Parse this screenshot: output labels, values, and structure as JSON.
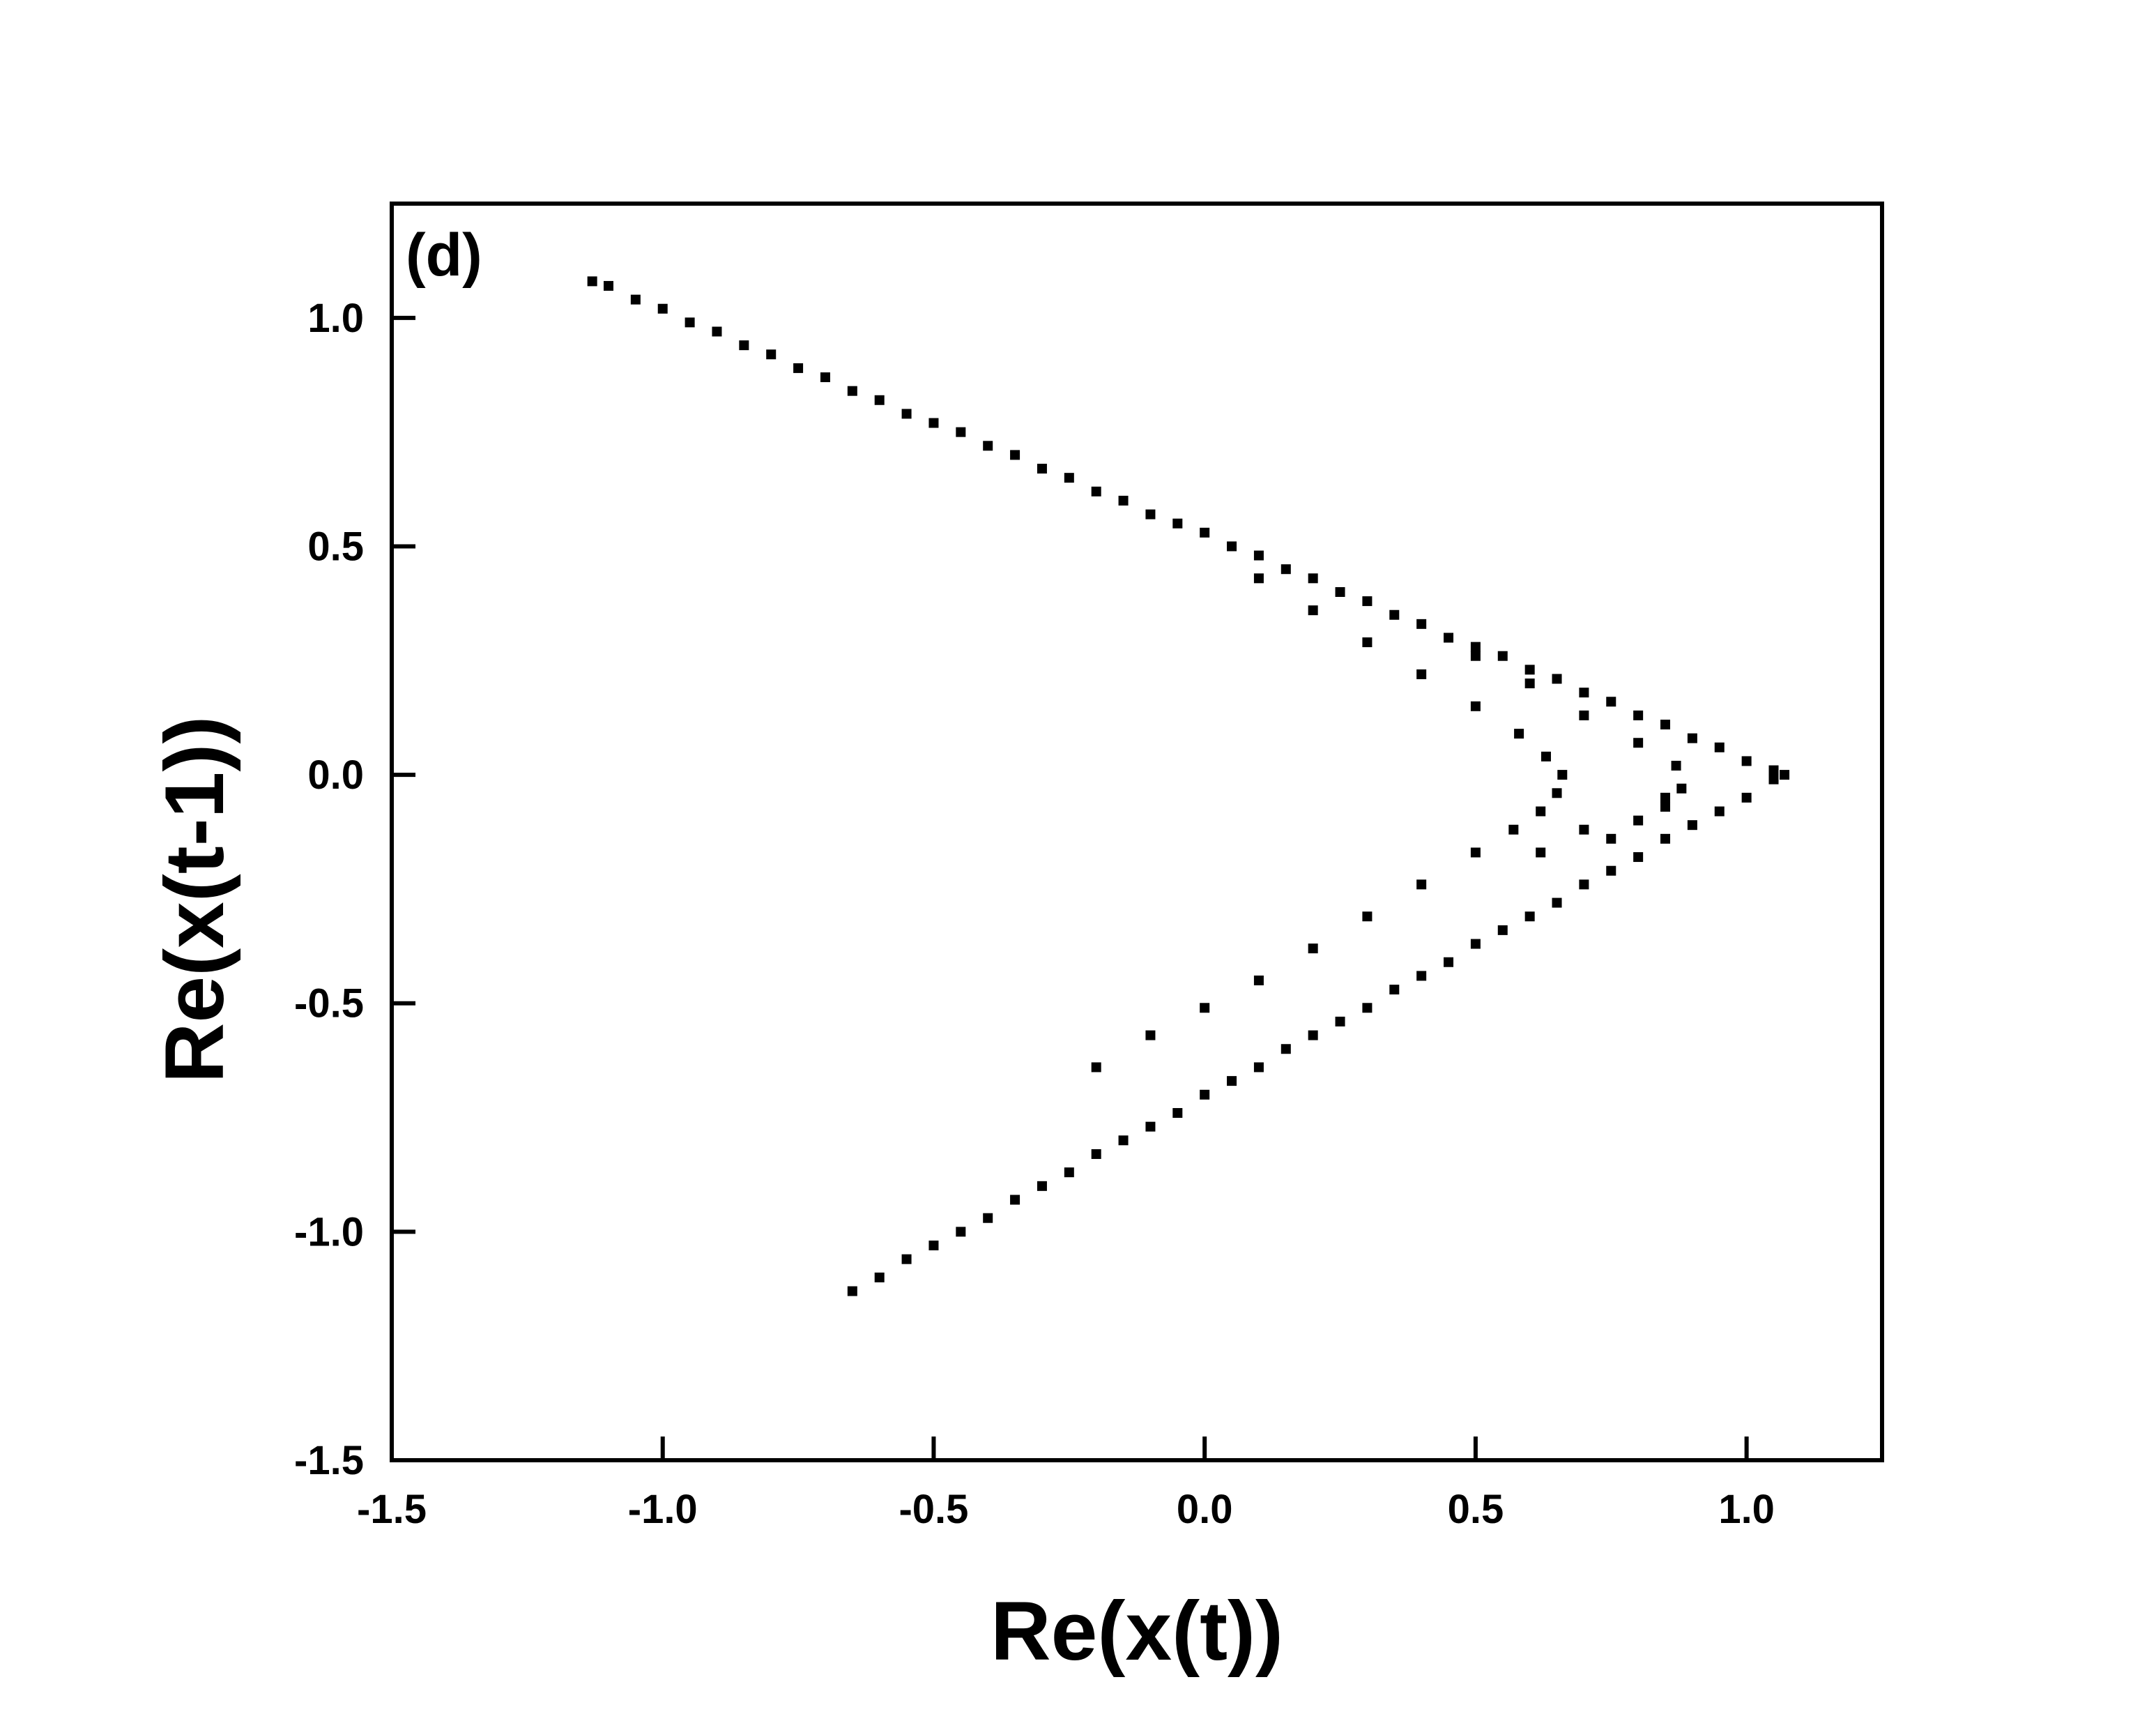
{
  "chart_data": {
    "type": "scatter",
    "annotation": "(d)",
    "x_label": "Re(x(t))",
    "y_label": "Re(x(t-1))",
    "color": "#000000",
    "xlim": [
      -1.5,
      1.25
    ],
    "ylim": [
      -1.5,
      1.25
    ],
    "xticks": [
      {
        "value": -1.5,
        "label": "-1.5"
      },
      {
        "value": -1,
        "label": "-1.0"
      },
      {
        "value": -0.5,
        "label": "-0.5"
      },
      {
        "value": 0,
        "label": "0.0"
      },
      {
        "value": 0.5,
        "label": "0.5"
      },
      {
        "value": 1,
        "label": "1.0"
      }
    ],
    "yticks": [
      {
        "value": -1.5,
        "label": "-1.5"
      },
      {
        "value": -1,
        "label": "-1.0"
      },
      {
        "value": -0.5,
        "label": "-0.5"
      },
      {
        "value": 0,
        "label": "0.0"
      },
      {
        "value": 0.5,
        "label": "0.5"
      },
      {
        "value": 1,
        "label": "1.0"
      }
    ],
    "x": [
      -1.13,
      -1.1,
      -1.05,
      -1.0,
      -0.95,
      -0.9,
      -0.85,
      -0.8,
      -0.75,
      -0.7,
      -0.65,
      -0.6,
      -0.55,
      -0.5,
      -0.45,
      -0.4,
      -0.35,
      -0.3,
      -0.25,
      -0.2,
      -0.15,
      -0.1,
      -0.05,
      0.0,
      0.05,
      0.1,
      0.15,
      0.2,
      0.25,
      0.3,
      0.35,
      0.4,
      0.45,
      0.5,
      0.55,
      0.6,
      0.65,
      0.7,
      0.75,
      0.8,
      0.85,
      0.9,
      0.95,
      1.0,
      1.05,
      1.07,
      1.05,
      1.0,
      0.95,
      0.9,
      0.85,
      0.8,
      0.75,
      0.7,
      0.65,
      0.6,
      0.55,
      0.5,
      0.45,
      0.4,
      0.35,
      0.3,
      0.25,
      0.2,
      0.15,
      0.1,
      0.05,
      0.0,
      -0.05,
      -0.1,
      -0.15,
      -0.2,
      -0.25,
      -0.3,
      -0.35,
      -0.4,
      -0.45,
      -0.5,
      -0.55,
      -0.6,
      -0.65,
      0.1,
      0.2,
      0.3,
      0.4,
      0.5,
      0.58,
      0.63,
      0.66,
      0.65,
      0.62,
      0.57,
      0.5,
      0.4,
      0.3,
      0.2,
      0.1,
      0.0,
      -0.1,
      -0.2,
      0.5,
      0.6,
      0.7,
      0.8,
      0.87,
      0.88,
      0.85,
      0.8,
      0.75,
      0.85,
      0.7,
      0.62
    ],
    "values": [
      1.08,
      1.07,
      1.04,
      1.02,
      0.99,
      0.97,
      0.94,
      0.92,
      0.89,
      0.87,
      0.84,
      0.82,
      0.79,
      0.77,
      0.75,
      0.72,
      0.7,
      0.67,
      0.65,
      0.62,
      0.6,
      0.57,
      0.55,
      0.53,
      0.5,
      0.48,
      0.45,
      0.43,
      0.4,
      0.38,
      0.35,
      0.33,
      0.3,
      0.28,
      0.26,
      0.23,
      0.21,
      0.18,
      0.16,
      0.13,
      0.11,
      0.08,
      0.06,
      0.03,
      0.01,
      0.0,
      -0.01,
      -0.05,
      -0.08,
      -0.11,
      -0.14,
      -0.18,
      -0.21,
      -0.24,
      -0.28,
      -0.31,
      -0.34,
      -0.37,
      -0.41,
      -0.44,
      -0.47,
      -0.51,
      -0.54,
      -0.57,
      -0.6,
      -0.64,
      -0.67,
      -0.7,
      -0.74,
      -0.77,
      -0.8,
      -0.83,
      -0.87,
      -0.9,
      -0.93,
      -0.97,
      -1.0,
      -1.03,
      -1.06,
      -1.1,
      -1.13,
      0.43,
      0.36,
      0.29,
      0.22,
      0.15,
      0.09,
      0.04,
      0.0,
      -0.04,
      -0.08,
      -0.12,
      -0.17,
      -0.24,
      -0.31,
      -0.38,
      -0.45,
      -0.51,
      -0.57,
      -0.64,
      0.26,
      0.2,
      0.13,
      0.07,
      0.02,
      -0.03,
      -0.07,
      -0.1,
      -0.14,
      -0.05,
      -0.12,
      -0.17
    ]
  }
}
